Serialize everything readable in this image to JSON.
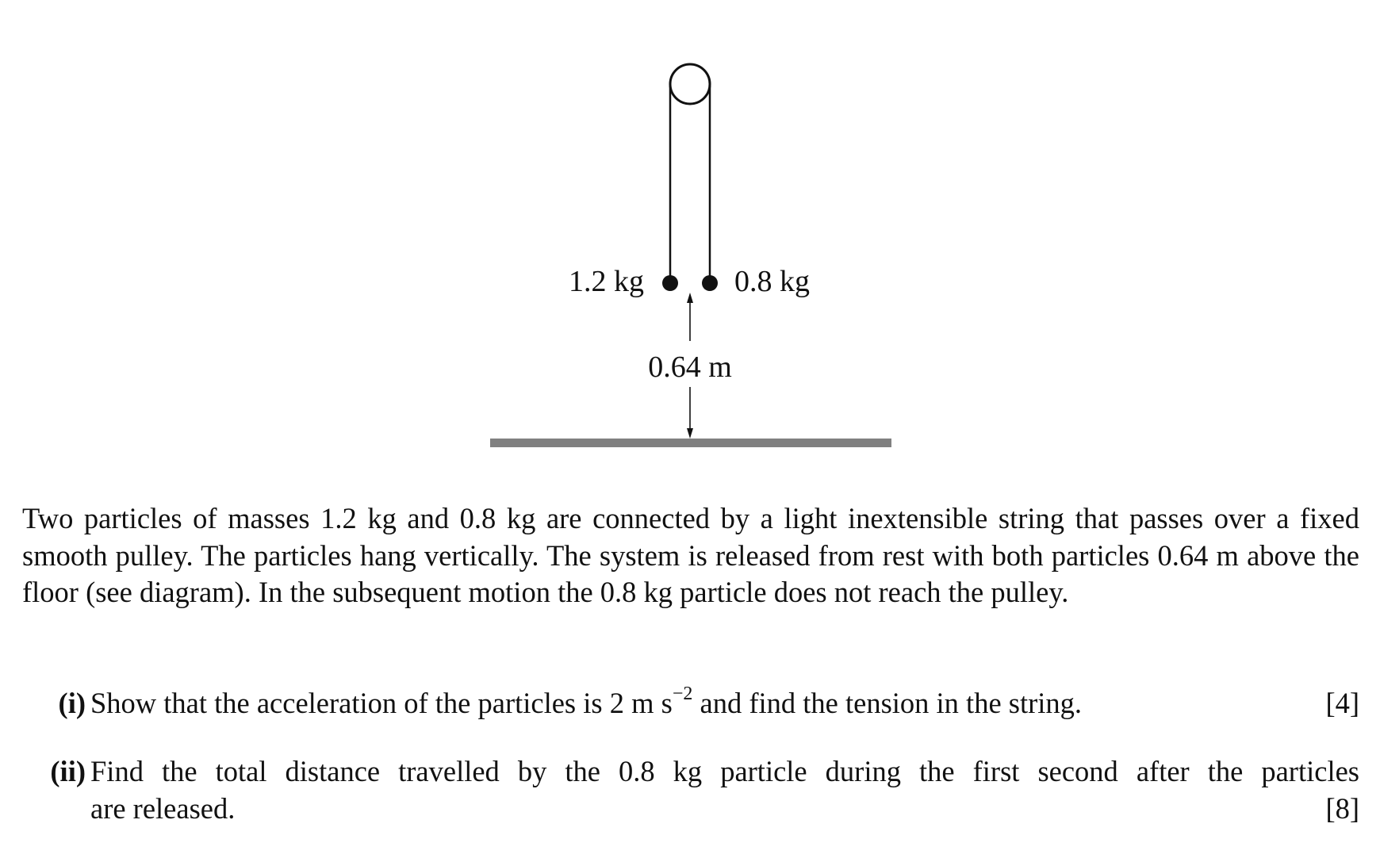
{
  "diagram": {
    "mass_left": "1.2 kg",
    "mass_right": "0.8 kg",
    "height": "0.64 m"
  },
  "intro": "Two particles of masses 1.2 kg and 0.8 kg are connected by a light inextensible string that passes over a fixed smooth pulley. The particles hang vertically. The system is released from rest with both particles 0.64 m above the floor (see diagram). In the subsequent motion the 0.8 kg particle does not reach the pulley.",
  "parts": [
    {
      "label": "(i)",
      "text_before": "Show that the acceleration of the particles is 2 m s",
      "exponent": "−2",
      "text_after": " and find the tension in the string.",
      "marks": "[4]"
    },
    {
      "label": "(ii)",
      "text_line1": "Find the total distance travelled by the 0.8 kg particle during the first second after the particles",
      "text_line2": "are released.",
      "marks": "[8]"
    }
  ]
}
